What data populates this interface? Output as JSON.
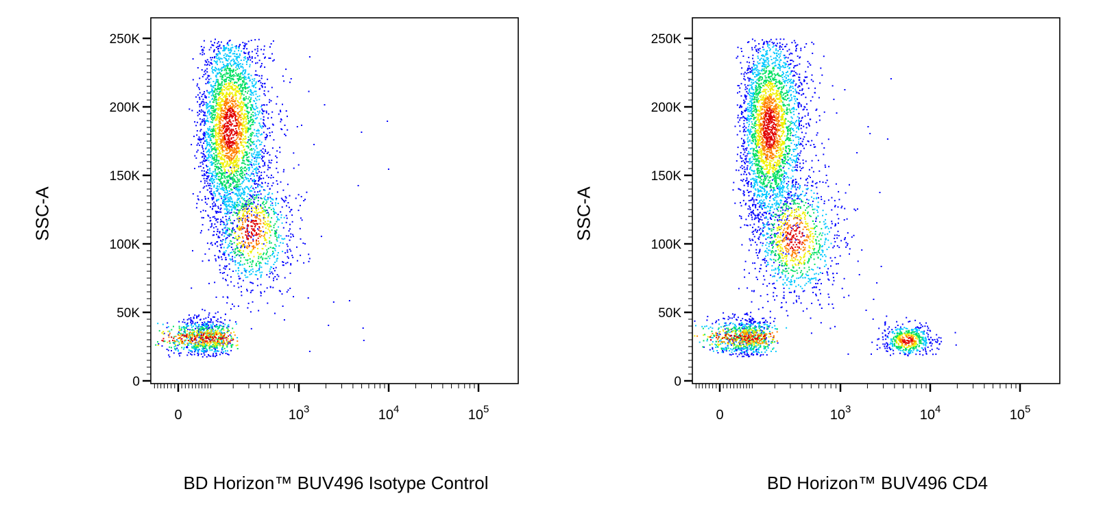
{
  "chart_data": [
    {
      "type": "scatter",
      "title": "",
      "xlabel": "BD Horizon™ BUV496 Isotype Control",
      "ylabel": "SSC-A",
      "x_scale": "biexponential",
      "x_ticks": [
        {
          "label": "0",
          "sup": "",
          "value": 0
        },
        {
          "label": "10",
          "sup": "3",
          "value": 1000
        },
        {
          "label": "10",
          "sup": "4",
          "value": 10000
        },
        {
          "label": "10",
          "sup": "5",
          "value": 100000
        }
      ],
      "y_ticks": [
        "0",
        "50K",
        "100K",
        "150K",
        "200K",
        "250K"
      ],
      "ylim": [
        0,
        262000
      ],
      "color_scale": [
        "#0000ff",
        "#00c8ff",
        "#00e060",
        "#f0f000",
        "#ff8000",
        "#e00000"
      ],
      "populations": [
        {
          "name": "",
          "x_center": 180,
          "y_center": 185000,
          "x_spread": 0.14,
          "y_spread": 38000,
          "count": 3200
        },
        {
          "name": "",
          "x_center": 320,
          "y_center": 110000,
          "x_spread": 0.14,
          "y_spread": 22000,
          "count": 900
        },
        {
          "name": "",
          "x_center": 75,
          "y_center": 32000,
          "x_spread": 0.12,
          "y_spread": 7000,
          "count": 950
        }
      ],
      "points": [
        {
          "x": 1900,
          "y": 202000
        },
        {
          "x": 4900,
          "y": 182000
        },
        {
          "x": 9500,
          "y": 190000
        },
        {
          "x": 9800,
          "y": 155000
        },
        {
          "x": 4500,
          "y": 143000
        },
        {
          "x": 1300,
          "y": 237000
        },
        {
          "x": 500,
          "y": 236000
        },
        {
          "x": 820,
          "y": 221000
        },
        {
          "x": 950,
          "y": 186000
        },
        {
          "x": 1450,
          "y": 173000
        },
        {
          "x": 1100,
          "y": 101000
        },
        {
          "x": 1250,
          "y": 61000
        },
        {
          "x": 2100,
          "y": 41000
        },
        {
          "x": 3600,
          "y": 59000
        },
        {
          "x": 5200,
          "y": 30000
        },
        {
          "x": 2400,
          "y": 58000
        },
        {
          "x": 1300,
          "y": 22000
        },
        {
          "x": 800,
          "y": 68000
        },
        {
          "x": 700,
          "y": 45000
        },
        {
          "x": 5100,
          "y": 39000
        }
      ]
    },
    {
      "type": "scatter",
      "title": "",
      "xlabel": "BD Horizon™ BUV496 CD4",
      "ylabel": "SSC-A",
      "x_scale": "biexponential",
      "x_ticks": [
        {
          "label": "0",
          "sup": "",
          "value": 0
        },
        {
          "label": "10",
          "sup": "3",
          "value": 1000
        },
        {
          "label": "10",
          "sup": "4",
          "value": 10000
        },
        {
          "label": "10",
          "sup": "5",
          "value": 100000
        }
      ],
      "y_ticks": [
        "0",
        "50K",
        "100K",
        "150K",
        "200K",
        "250K"
      ],
      "ylim": [
        0,
        262000
      ],
      "color_scale": [
        "#0000ff",
        "#00c8ff",
        "#00e060",
        "#f0f000",
        "#ff8000",
        "#e00000"
      ],
      "populations": [
        {
          "name": "",
          "x_center": 170,
          "y_center": 185000,
          "x_spread": 0.13,
          "y_spread": 38000,
          "count": 3100
        },
        {
          "name": "",
          "x_center": 330,
          "y_center": 105000,
          "x_spread": 0.15,
          "y_spread": 24000,
          "count": 1000
        },
        {
          "name": "",
          "x_center": 75,
          "y_center": 32000,
          "x_spread": 0.12,
          "y_spread": 7000,
          "count": 950
        },
        {
          "name": "",
          "x_center": 5500,
          "y_center": 30000,
          "x_spread": 0.09,
          "y_spread": 6000,
          "count": 520
        }
      ],
      "points": [
        {
          "x": 3600,
          "y": 221000
        },
        {
          "x": 2000,
          "y": 186000
        },
        {
          "x": 2100,
          "y": 181000
        },
        {
          "x": 3300,
          "y": 177000
        },
        {
          "x": 2700,
          "y": 138000
        },
        {
          "x": 1500,
          "y": 167000
        },
        {
          "x": 900,
          "y": 196000
        },
        {
          "x": 1100,
          "y": 213000
        },
        {
          "x": 2300,
          "y": 60000
        },
        {
          "x": 1900,
          "y": 52000
        },
        {
          "x": 1600,
          "y": 78000
        },
        {
          "x": 1200,
          "y": 20000
        },
        {
          "x": 2800,
          "y": 84000
        },
        {
          "x": 1700,
          "y": 96000
        },
        {
          "x": 2500,
          "y": 72000
        }
      ]
    }
  ]
}
